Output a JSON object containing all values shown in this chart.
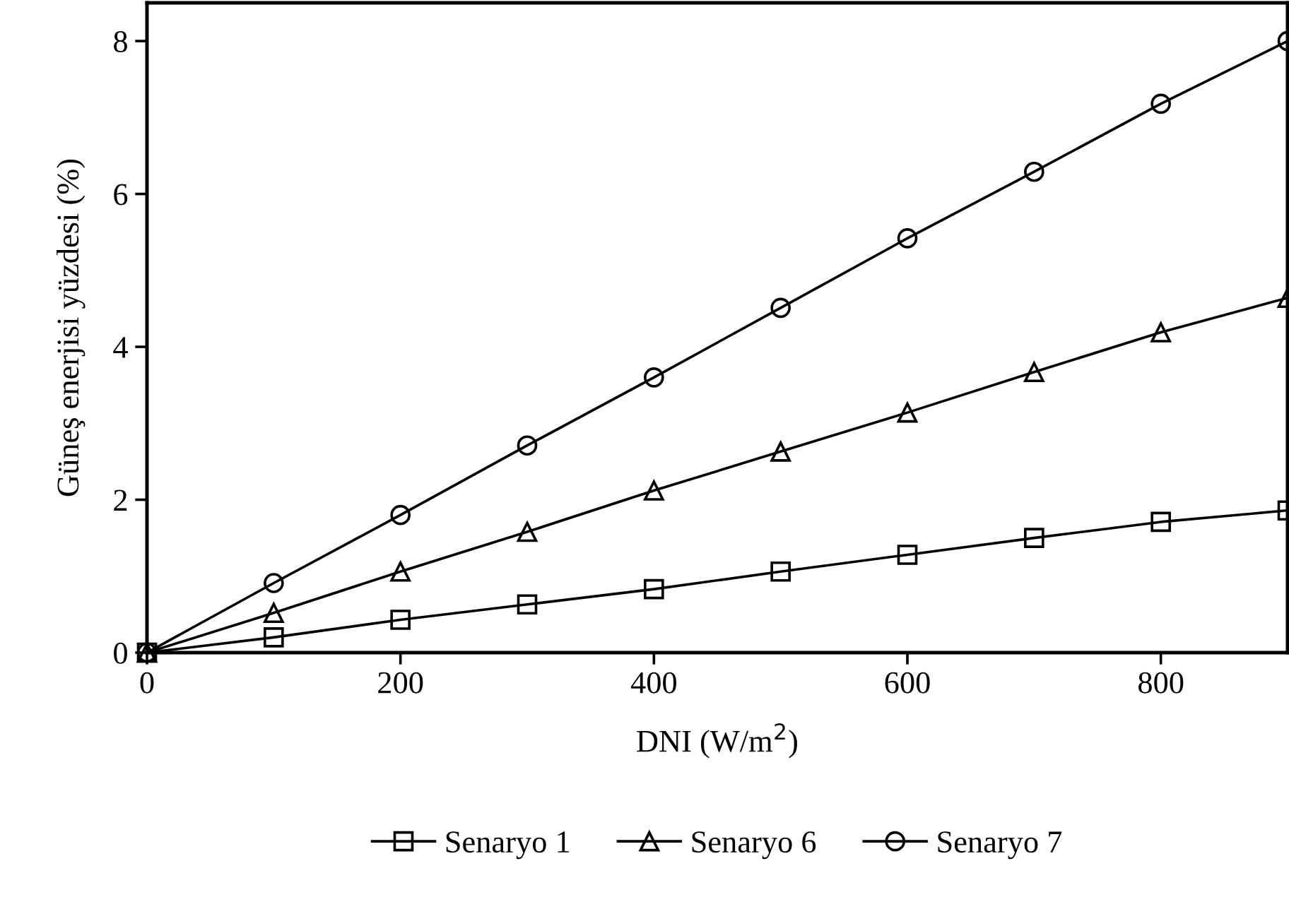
{
  "chart_data": {
    "type": "line",
    "xlabel": "DNI (W/m$^{2}$)",
    "ylabel": "Güneş enerjisi yüzdesi (%)",
    "x": [
      0,
      100,
      200,
      300,
      400,
      500,
      600,
      700,
      800,
      900
    ],
    "series": [
      {
        "name": "Senaryo 1",
        "color": "#000000",
        "marker": "square",
        "values": [
          0,
          0.2,
          0.43,
          0.63,
          0.83,
          1.06,
          1.28,
          1.5,
          1.71,
          1.86
        ]
      },
      {
        "name": "Senaryo 6",
        "color": "#000000",
        "marker": "triangle",
        "values": [
          0,
          0.52,
          1.06,
          1.58,
          2.12,
          2.63,
          3.14,
          3.67,
          4.19,
          4.64
        ]
      },
      {
        "name": "Senaryo 7",
        "color": "#000000",
        "marker": "circle",
        "values": [
          0,
          0.91,
          1.8,
          2.71,
          3.6,
          4.51,
          5.42,
          6.29,
          7.18,
          8.0
        ]
      }
    ],
    "xlim": [
      0,
      900
    ],
    "ylim": [
      0,
      8.5
    ],
    "xticks": [
      0,
      200,
      400,
      600,
      800
    ],
    "yticks": [
      0,
      2,
      4,
      6,
      8
    ],
    "grid": false,
    "legend": "bottom",
    "line_style": "solid"
  }
}
